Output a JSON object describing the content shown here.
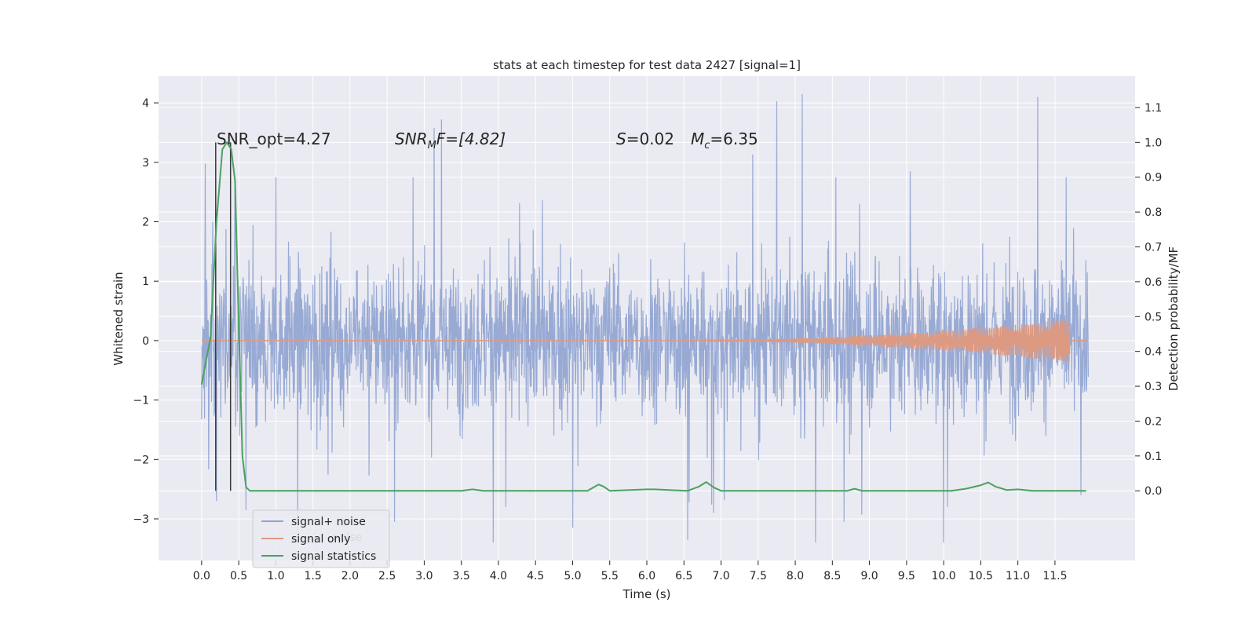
{
  "chart_data": {
    "type": "line",
    "title": "stats at each timestep for test data 2427 [signal=1]",
    "xlabel": "Time (s)",
    "ylabel_left": "Whitened strain",
    "ylabel_right": "Detection probability/MF",
    "x_ticks": [
      "0.0",
      "0.5",
      "1.0",
      "1.5",
      "2.0",
      "2.5",
      "3.0",
      "3.5",
      "4.0",
      "4.5",
      "5.0",
      "5.5",
      "6.0",
      "6.5",
      "7.0",
      "7.5",
      "8.0",
      "8.5",
      "9.0",
      "9.5",
      "10.0",
      "10.5",
      "11.0",
      "11.5"
    ],
    "y_left_ticks": [
      "−3",
      "−2",
      "−1",
      "0",
      "1",
      "2",
      "3",
      "4"
    ],
    "y_right_ticks": [
      "0.0",
      "0.1",
      "0.2",
      "0.3",
      "0.4",
      "0.5",
      "0.6",
      "0.7",
      "0.8",
      "0.9",
      "1.0",
      "1.1"
    ],
    "xlim": [
      -0.58,
      12.58
    ],
    "ylim_left": [
      -3.7,
      4.45
    ],
    "ylim_right": [
      -0.2,
      1.19
    ],
    "grid": true,
    "legend_position": "lower-left",
    "annotations": {
      "snr_opt": "SNR_opt=4.27",
      "snr_mf_main": "SNR",
      "snr_mf_sub": "M",
      "snr_mf_rest": "F=[4.82]",
      "s_main": "S",
      "s_rest": "=0.02",
      "mc_main": "M",
      "mc_sub": "c",
      "mc_rest": "=6.35"
    },
    "vertical_lines_x": [
      0.19,
      0.39
    ],
    "series": [
      {
        "name": "signal+ noise",
        "color": "#8fa3d0",
        "axis": "left",
        "description_points": {
          "x_range": [
            0.0,
            11.95
          ],
          "band_typical": [
            -0.8,
            0.95
          ],
          "outer_envelope": [
            -1.5,
            1.5
          ],
          "spikes": [
            {
              "x": 0.15,
              "y": 2.0
            },
            {
              "x": 0.2,
              "y": -2.7
            },
            {
              "x": 0.45,
              "y": 2.6
            },
            {
              "x": 0.6,
              "y": -2.85
            },
            {
              "x": 1.0,
              "y": 2.75
            },
            {
              "x": 2.6,
              "y": -3.05
            },
            {
              "x": 2.85,
              "y": 2.75
            },
            {
              "x": 4.1,
              "y": -2.8
            },
            {
              "x": 5.0,
              "y": -3.15
            },
            {
              "x": 6.55,
              "y": -3.35
            },
            {
              "x": 6.9,
              "y": -2.9
            },
            {
              "x": 8.55,
              "y": 2.75
            },
            {
              "x": 9.55,
              "y": 2.85
            },
            {
              "x": 10.05,
              "y": -2.8
            },
            {
              "x": 11.27,
              "y": 4.1
            },
            {
              "x": 11.65,
              "y": 2.75
            },
            {
              "x": 11.85,
              "y": -2.6
            }
          ]
        }
      },
      {
        "name": "signal only",
        "color": "#dd9a83",
        "axis": "left",
        "chirp": {
          "x_start": 6.0,
          "x_end": 11.7,
          "peak_amplitude": 0.35,
          "collapse_x": 11.72
        }
      },
      {
        "name": "signal statistics",
        "color": "#4aa160",
        "axis": "right",
        "x": [
          0.0,
          0.12,
          0.2,
          0.28,
          0.34,
          0.4,
          0.45,
          0.5,
          0.55,
          0.6,
          0.65,
          3.5,
          3.65,
          3.8,
          5.2,
          5.3,
          5.35,
          5.42,
          5.5,
          6.0,
          6.1,
          6.3,
          6.55,
          6.7,
          6.8,
          6.9,
          7.0,
          8.7,
          8.8,
          8.9,
          10.1,
          10.3,
          10.5,
          10.6,
          10.7,
          10.85,
          11.0,
          11.2,
          11.92
        ],
        "y": [
          0.305,
          0.44,
          0.77,
          0.98,
          1.0,
          0.98,
          0.89,
          0.48,
          0.1,
          0.01,
          0.0,
          0.0,
          0.004,
          0.0,
          0.0,
          0.012,
          0.018,
          0.012,
          0.0,
          0.004,
          0.004,
          0.002,
          0.0,
          0.012,
          0.025,
          0.01,
          0.0,
          0.0,
          0.006,
          0.0,
          0.0,
          0.006,
          0.016,
          0.024,
          0.012,
          0.002,
          0.004,
          0.0,
          0.0
        ]
      }
    ],
    "legend": {
      "items": [
        "signal+ noise",
        "signal only",
        "signal statistics"
      ],
      "ghost_text": "noise"
    }
  }
}
